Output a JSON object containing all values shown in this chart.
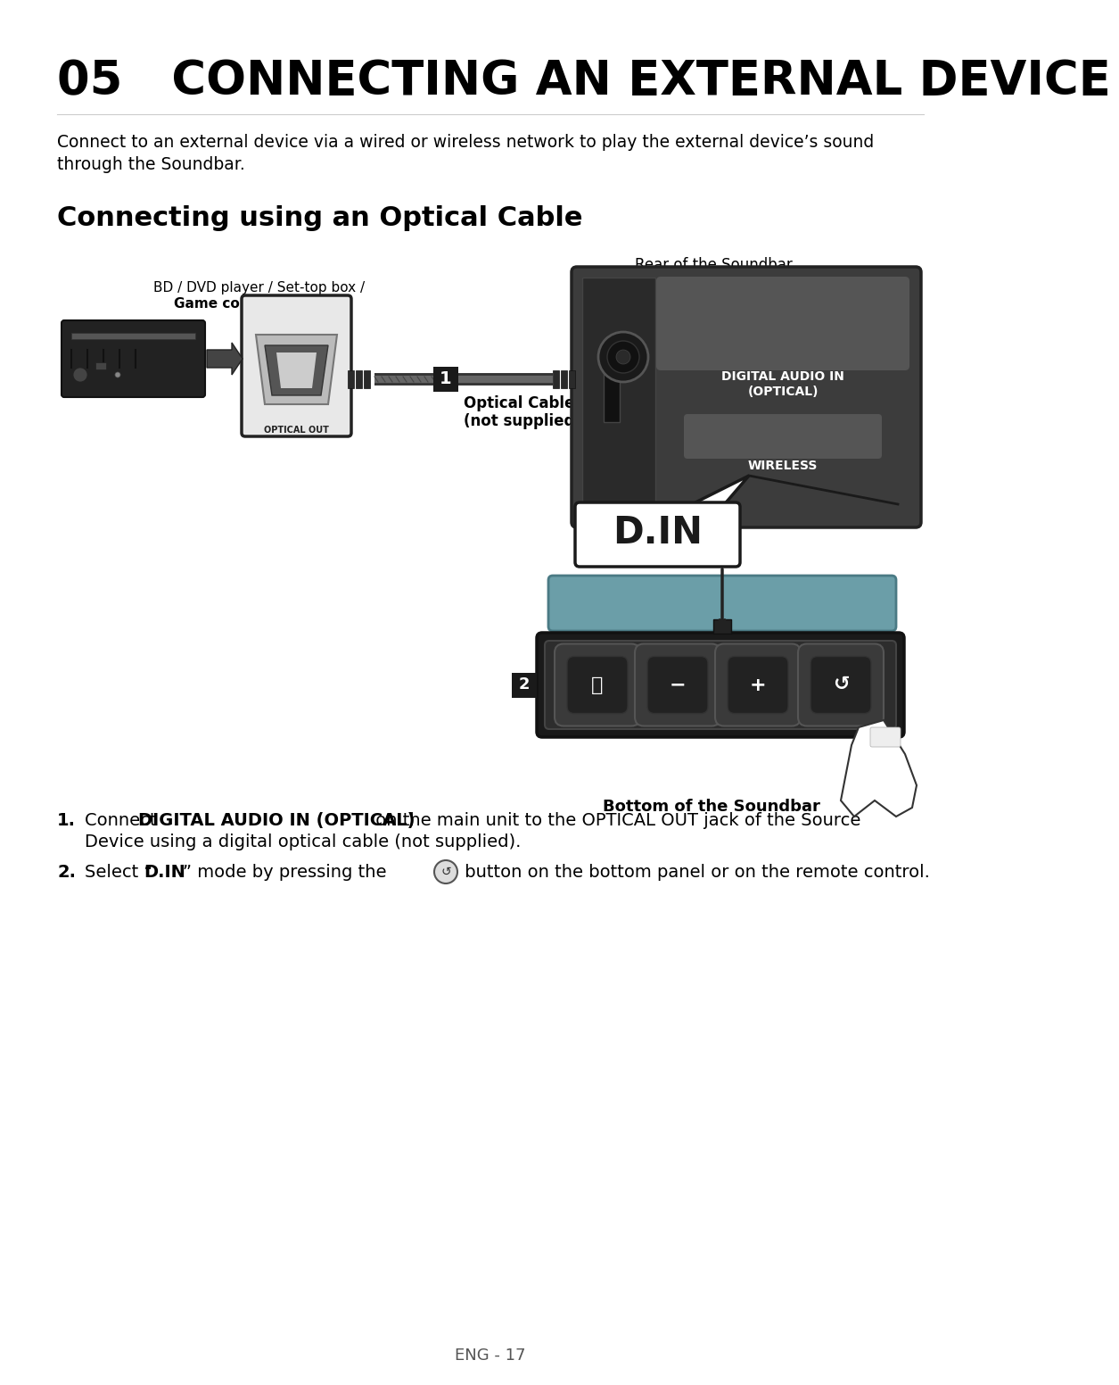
{
  "title": "05   CONNECTING AN EXTERNAL DEVICE",
  "subtitle_line1": "Connect to an external device via a wired or wireless network to play the external device’s sound",
  "subtitle_line2": "through the Soundbar.",
  "section_title": "Connecting using an Optical Cable",
  "label_bd": "BD / DVD player / Set-top box /",
  "label_bd2": "Game console",
  "label_optical_out": "OPTICAL OUT",
  "label_optical_cable_1": "Optical Cable",
  "label_optical_cable_2": "(not supplied)",
  "label_rear": "Rear of the Soundbar",
  "label_digital_audio": "DIGITAL AUDIO IN\n(OPTICAL)",
  "label_wireless": "WIRELESS",
  "label_din": "D.IN",
  "label_bottom": "Bottom of the Soundbar",
  "page_number": "ENG - 17",
  "bg_color": "#ffffff",
  "text_color": "#000000",
  "dark1": "#1a1a1a",
  "dark2": "#2d2d2d",
  "dark3": "#3d3d3d",
  "mid1": "#555555",
  "mid2": "#777777",
  "light1": "#aaaaaa",
  "light2": "#cccccc",
  "teal": "#6b9ea8",
  "teal_dark": "#4a7a84",
  "rear_bg": "#3c3c3c",
  "badge_bg": "#1a1a1a"
}
